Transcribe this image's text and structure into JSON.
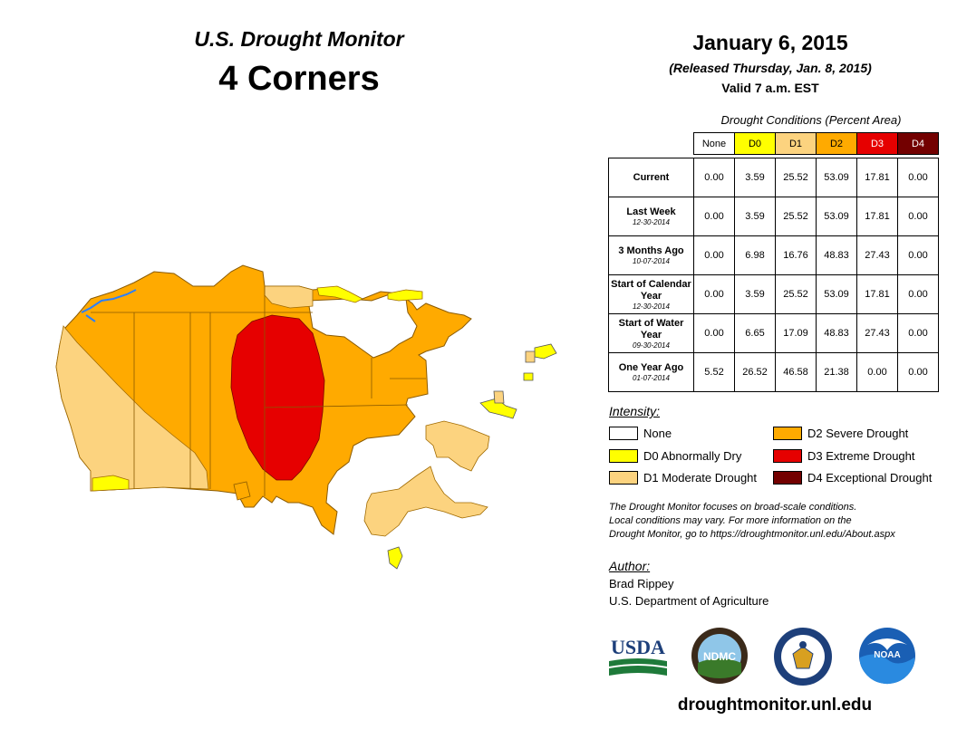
{
  "header": {
    "title": "U.S. Drought Monitor",
    "region": "4 Corners",
    "date": "January 6, 2015",
    "released": "(Released Thursday, Jan. 8, 2015)",
    "valid": "Valid 7 a.m. EST"
  },
  "table": {
    "caption": "Drought Conditions (Percent Area)",
    "columns": [
      {
        "label": "None",
        "color": "#ffffff",
        "text_color": "#000000"
      },
      {
        "label": "D0",
        "color": "#ffff00",
        "text_color": "#000000"
      },
      {
        "label": "D1",
        "color": "#fcd37f",
        "text_color": "#000000"
      },
      {
        "label": "D2",
        "color": "#ffaa00",
        "text_color": "#000000"
      },
      {
        "label": "D3",
        "color": "#e60000",
        "text_color": "#ffffff"
      },
      {
        "label": "D4",
        "color": "#730000",
        "text_color": "#ffffff"
      }
    ],
    "rows": [
      {
        "label": "Current",
        "date": "",
        "values": [
          "0.00",
          "3.59",
          "25.52",
          "53.09",
          "17.81",
          "0.00"
        ]
      },
      {
        "label": "Last Week",
        "date": "12-30-2014",
        "values": [
          "0.00",
          "3.59",
          "25.52",
          "53.09",
          "17.81",
          "0.00"
        ]
      },
      {
        "label": "3 Months Ago",
        "date": "10-07-2014",
        "values": [
          "0.00",
          "6.98",
          "16.76",
          "48.83",
          "27.43",
          "0.00"
        ]
      },
      {
        "label": "Start of Calendar Year",
        "date": "12-30-2014",
        "values": [
          "0.00",
          "3.59",
          "25.52",
          "53.09",
          "17.81",
          "0.00"
        ]
      },
      {
        "label": "Start of Water Year",
        "date": "09-30-2014",
        "values": [
          "0.00",
          "6.65",
          "17.09",
          "48.83",
          "27.43",
          "0.00"
        ]
      },
      {
        "label": "One Year Ago",
        "date": "01-07-2014",
        "values": [
          "5.52",
          "26.52",
          "46.58",
          "21.38",
          "0.00",
          "0.00"
        ]
      }
    ]
  },
  "legend": {
    "heading": "Intensity:",
    "items": [
      {
        "label": "None",
        "color": "#ffffff"
      },
      {
        "label": "D0 Abnormally Dry",
        "color": "#ffff00"
      },
      {
        "label": "D1 Moderate Drought",
        "color": "#fcd37f"
      },
      {
        "label": "D2 Severe Drought",
        "color": "#ffaa00"
      },
      {
        "label": "D3 Extreme Drought",
        "color": "#e60000"
      },
      {
        "label": "D4 Exceptional Drought",
        "color": "#730000"
      }
    ]
  },
  "note": {
    "line1": "The Drought Monitor focuses on broad-scale conditions.",
    "line2": "Local conditions may vary. For more information on the",
    "line3": "Drought Monitor, go to https://droughtmonitor.unl.edu/About.aspx"
  },
  "author": {
    "heading": "Author:",
    "name": "Brad Rippey",
    "organization": "U.S. Department of Agriculture"
  },
  "logos": {
    "usda": "USDA",
    "ndmc": "NDMC",
    "noaa": "NOAA"
  },
  "website": "droughtmonitor.unl.edu"
}
